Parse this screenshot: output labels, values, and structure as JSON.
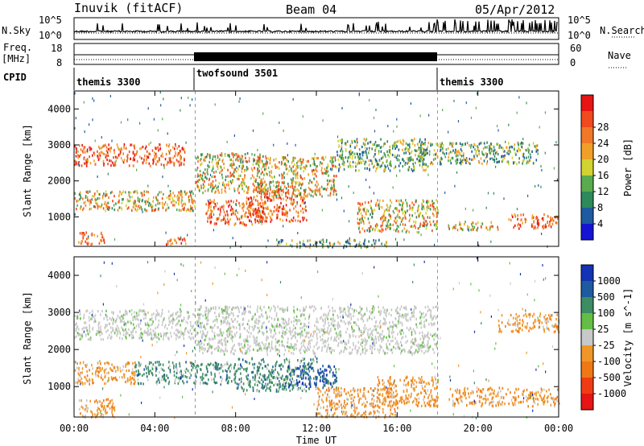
{
  "header": {
    "station": "Inuvik (fitACF)",
    "beam": "Beam 04",
    "date": "05/Apr/2012"
  },
  "top_panels": {
    "nsky_label": "N.Sky",
    "nsky_ticks": [
      "10^5",
      "10^0"
    ],
    "nsearch_label": "N.Search",
    "freq_label_line1": "Freq.",
    "freq_label_line2": "[MHz]",
    "freq_ticks": [
      "18",
      "8"
    ],
    "nave_label": "Nave",
    "nave_ticks": [
      "60",
      "0"
    ],
    "cpid_label": "CPID",
    "cpid_segments": [
      {
        "label": "themis 3300",
        "start": "00:00",
        "end": "06:00"
      },
      {
        "label": "twofsound 3501",
        "start": "06:00",
        "end": "18:00"
      },
      {
        "label": "themis 3300",
        "start": "18:00",
        "end": "24:00"
      }
    ]
  },
  "chart_data": [
    {
      "type": "heatmap",
      "panel": "power",
      "ylabel": "Slant Range [km]",
      "xlabel": "Time UT",
      "x_range": [
        "00:00",
        "24:00"
      ],
      "xticks": [
        "00:00",
        "04:00",
        "08:00",
        "12:00",
        "16:00",
        "20:00",
        "00:00"
      ],
      "ylim": [
        180,
        4500
      ],
      "yticks": [
        1000,
        2000,
        3000,
        4000
      ],
      "colorbar": {
        "label": "Power [dB]",
        "ticks": [
          "4",
          "8",
          "12",
          "16",
          "20",
          "24",
          "28"
        ],
        "colors": [
          "#1414d2",
          "#1e5aa0",
          "#2e8a5a",
          "#5aaa50",
          "#d2d232",
          "#f0a028",
          "#f07828",
          "#f04a1e",
          "#e61414"
        ]
      },
      "regions": [
        {
          "t0": 0.0,
          "t1": 5.5,
          "r0": 2450,
          "r1": 3050,
          "level": "high"
        },
        {
          "t0": 0.0,
          "t1": 6.0,
          "r0": 1200,
          "r1": 1750,
          "level": "mid"
        },
        {
          "t0": 0.2,
          "t1": 1.5,
          "r0": 250,
          "r1": 600,
          "level": "high"
        },
        {
          "t0": 4.3,
          "t1": 5.5,
          "r0": 250,
          "r1": 450,
          "level": "high"
        },
        {
          "t0": 6.0,
          "t1": 9.5,
          "r0": 1700,
          "r1": 2800,
          "level": "mid"
        },
        {
          "t0": 6.5,
          "t1": 9.5,
          "r0": 800,
          "r1": 1500,
          "level": "high"
        },
        {
          "t0": 8.5,
          "t1": 11.5,
          "r0": 900,
          "r1": 1800,
          "level": "high"
        },
        {
          "t0": 9.0,
          "t1": 13.0,
          "r0": 1600,
          "r1": 2700,
          "level": "mid"
        },
        {
          "t0": 13.0,
          "t1": 17.5,
          "r0": 2300,
          "r1": 3200,
          "level": "low"
        },
        {
          "t0": 14.0,
          "t1": 18.0,
          "r0": 600,
          "r1": 1500,
          "level": "mid"
        },
        {
          "t0": 10.0,
          "t1": 15.5,
          "r0": 180,
          "r1": 400,
          "level": "low"
        },
        {
          "t0": 17.0,
          "t1": 23.0,
          "r0": 2500,
          "r1": 3100,
          "level": "low"
        },
        {
          "t0": 21.5,
          "t1": 24.0,
          "r0": 700,
          "r1": 1100,
          "level": "high"
        },
        {
          "t0": 18.5,
          "t1": 21.0,
          "r0": 650,
          "r1": 900,
          "level": "mid"
        }
      ]
    },
    {
      "type": "heatmap",
      "panel": "velocity",
      "ylabel": "Slant Range [km]",
      "xlabel": "Time UT",
      "x_range": [
        "00:00",
        "24:00"
      ],
      "xticks": [
        "00:00",
        "04:00",
        "08:00",
        "12:00",
        "16:00",
        "20:00",
        "00:00"
      ],
      "ylim": [
        180,
        4500
      ],
      "yticks": [
        1000,
        2000,
        3000,
        4000
      ],
      "colorbar": {
        "label": "Velocity [m s^-1]",
        "ticks": [
          "1000",
          "500",
          "100",
          "25",
          "-25",
          "-100",
          "-500",
          "-1000"
        ],
        "colors": [
          "#1432b4",
          "#1e5aa0",
          "#3c8c64",
          "#64be46",
          "#c8c8c8",
          "#f09628",
          "#f07814",
          "#f03c14",
          "#e61414"
        ]
      },
      "regions": [
        {
          "t0": 0.0,
          "t1": 6.0,
          "r0": 2300,
          "r1": 3100,
          "level": "zero"
        },
        {
          "t0": 0.0,
          "t1": 3.0,
          "r0": 1100,
          "r1": 1700,
          "level": "neg"
        },
        {
          "t0": 3.0,
          "t1": 8.0,
          "r0": 1100,
          "r1": 1700,
          "level": "pos"
        },
        {
          "t0": 6.0,
          "t1": 18.0,
          "r0": 1900,
          "r1": 3200,
          "level": "zero"
        },
        {
          "t0": 8.0,
          "t1": 12.0,
          "r0": 900,
          "r1": 1800,
          "level": "pos"
        },
        {
          "t0": 10.5,
          "t1": 13.0,
          "r0": 1000,
          "r1": 1600,
          "level": "strongpos"
        },
        {
          "t0": 12.0,
          "t1": 16.0,
          "r0": 200,
          "r1": 1000,
          "level": "neg"
        },
        {
          "t0": 15.0,
          "t1": 18.0,
          "r0": 500,
          "r1": 1300,
          "level": "neg"
        },
        {
          "t0": 0.2,
          "t1": 2.0,
          "r0": 200,
          "r1": 700,
          "level": "neg"
        },
        {
          "t0": 18.5,
          "t1": 24.0,
          "r0": 500,
          "r1": 1000,
          "level": "neg"
        },
        {
          "t0": 21.0,
          "t1": 24.0,
          "r0": 2500,
          "r1": 3000,
          "level": "neg"
        }
      ]
    }
  ]
}
